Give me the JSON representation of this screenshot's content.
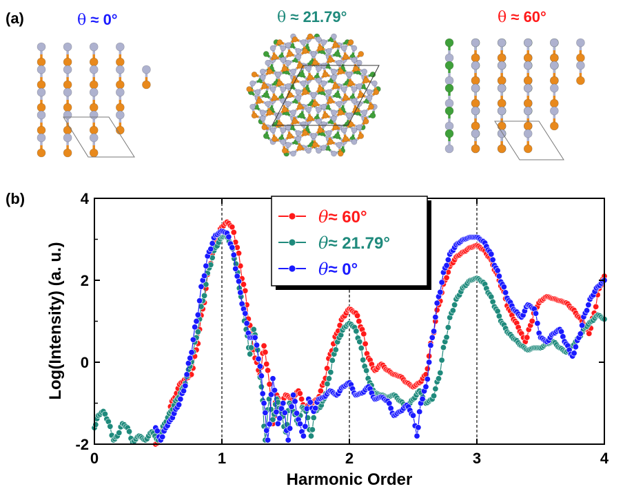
{
  "panel_a": {
    "label": "(a)",
    "structures": [
      {
        "theta": "θ",
        "approx": " ≈ ",
        "angle": "0°",
        "color": "#1a1aff"
      },
      {
        "theta": "θ",
        "approx": " ≈ ",
        "angle": "21.79°",
        "color": "#1f8a7c"
      },
      {
        "theta": "θ",
        "approx": " ≈ ",
        "angle": "60°",
        "color": "#ff1a1a"
      }
    ],
    "atom_colors": {
      "gray": "#aeb2cf",
      "orange": "#e8891c",
      "green": "#3fa03a"
    }
  },
  "panel_b": {
    "label": "(b)"
  },
  "chart_data": {
    "type": "line",
    "xlabel": "Harmonic Order",
    "ylabel": "Log(Intensity) (a. u.)",
    "xlim": [
      0,
      4
    ],
    "ylim": [
      -2,
      4
    ],
    "xticks": [
      "0",
      "1",
      "2",
      "3",
      "4"
    ],
    "yticks": [
      "-2",
      "0",
      "2",
      "4"
    ],
    "vlines": [
      1,
      2,
      3
    ],
    "legend_position": "top-center",
    "series": [
      {
        "name": "θ≈ 60°",
        "legend_theta": "θ",
        "legend_rest": "≈ 60°",
        "color": "#ff1a1a",
        "points": [
          [
            0.48,
            -2.0
          ],
          [
            0.55,
            -1.6
          ],
          [
            0.62,
            -0.9
          ],
          [
            0.68,
            -0.5
          ],
          [
            0.72,
            -0.4
          ],
          [
            0.76,
            -0.3
          ],
          [
            0.8,
            0.3
          ],
          [
            0.85,
            1.3
          ],
          [
            0.9,
            2.3
          ],
          [
            0.95,
            3.0
          ],
          [
            1.0,
            3.3
          ],
          [
            1.04,
            3.42
          ],
          [
            1.08,
            3.3
          ],
          [
            1.12,
            2.8
          ],
          [
            1.17,
            1.9
          ],
          [
            1.22,
            0.9
          ],
          [
            1.26,
            0.1
          ],
          [
            1.3,
            -0.3
          ],
          [
            1.33,
            0.4
          ],
          [
            1.36,
            -0.2
          ],
          [
            1.4,
            -1.5
          ],
          [
            1.43,
            -0.8
          ],
          [
            1.46,
            -1.1
          ],
          [
            1.5,
            -0.8
          ],
          [
            1.55,
            -0.9
          ],
          [
            1.6,
            -0.7
          ],
          [
            1.65,
            -1.1
          ],
          [
            1.7,
            -1.0
          ],
          [
            1.75,
            -0.9
          ],
          [
            1.8,
            -0.5
          ],
          [
            1.85,
            0.2
          ],
          [
            1.9,
            0.7
          ],
          [
            1.95,
            1.1
          ],
          [
            2.0,
            1.3
          ],
          [
            2.05,
            1.2
          ],
          [
            2.1,
            0.8
          ],
          [
            2.15,
            0.1
          ],
          [
            2.2,
            -0.2
          ],
          [
            2.25,
            -0.05
          ],
          [
            2.3,
            -0.2
          ],
          [
            2.35,
            -0.3
          ],
          [
            2.4,
            -0.35
          ],
          [
            2.45,
            -0.5
          ],
          [
            2.5,
            -0.6
          ],
          [
            2.55,
            -0.5
          ],
          [
            2.6,
            -0.3
          ],
          [
            2.65,
            0.6
          ],
          [
            2.7,
            1.4
          ],
          [
            2.75,
            2.0
          ],
          [
            2.8,
            2.4
          ],
          [
            2.85,
            2.6
          ],
          [
            2.9,
            2.7
          ],
          [
            2.95,
            2.8
          ],
          [
            3.0,
            2.85
          ],
          [
            3.05,
            2.75
          ],
          [
            3.1,
            2.55
          ],
          [
            3.15,
            2.2
          ],
          [
            3.2,
            1.8
          ],
          [
            3.25,
            1.3
          ],
          [
            3.3,
            1.0
          ],
          [
            3.35,
            0.7
          ],
          [
            3.38,
            0.5
          ],
          [
            3.42,
            0.9
          ],
          [
            3.46,
            1.3
          ],
          [
            3.5,
            1.5
          ],
          [
            3.55,
            1.6
          ],
          [
            3.6,
            1.55
          ],
          [
            3.65,
            1.5
          ],
          [
            3.7,
            1.45
          ],
          [
            3.75,
            1.3
          ],
          [
            3.8,
            1.1
          ],
          [
            3.85,
            0.9
          ],
          [
            3.88,
            0.7
          ],
          [
            3.92,
            1.2
          ],
          [
            3.96,
            1.8
          ],
          [
            4.0,
            2.1
          ]
        ]
      },
      {
        "name": "θ≈ 21.79°",
        "legend_theta": "θ",
        "legend_rest": "≈ 21.79°",
        "color": "#1f8a7c",
        "points": [
          [
            0.0,
            -1.6
          ],
          [
            0.03,
            -1.3
          ],
          [
            0.07,
            -1.2
          ],
          [
            0.11,
            -1.45
          ],
          [
            0.15,
            -1.9
          ],
          [
            0.18,
            -1.8
          ],
          [
            0.22,
            -1.5
          ],
          [
            0.26,
            -1.6
          ],
          [
            0.3,
            -1.95
          ],
          [
            0.35,
            -1.8
          ],
          [
            0.4,
            -1.9
          ],
          [
            0.45,
            -1.7
          ],
          [
            0.5,
            -1.9
          ],
          [
            0.55,
            -1.5
          ],
          [
            0.6,
            -1.2
          ],
          [
            0.65,
            -0.9
          ],
          [
            0.7,
            -0.6
          ],
          [
            0.75,
            -0.1
          ],
          [
            0.8,
            0.6
          ],
          [
            0.85,
            1.5
          ],
          [
            0.9,
            2.3
          ],
          [
            0.95,
            2.8
          ],
          [
            1.0,
            3.05
          ],
          [
            1.03,
            3.1
          ],
          [
            1.07,
            2.9
          ],
          [
            1.11,
            2.4
          ],
          [
            1.15,
            1.6
          ],
          [
            1.19,
            0.8
          ],
          [
            1.22,
            0.2
          ],
          [
            1.25,
            0.8
          ],
          [
            1.28,
            0.3
          ],
          [
            1.31,
            -0.6
          ],
          [
            1.34,
            -1.9
          ],
          [
            1.37,
            -0.9
          ],
          [
            1.4,
            -1.4
          ],
          [
            1.43,
            -0.9
          ],
          [
            1.46,
            -1.2
          ],
          [
            1.5,
            -1.7
          ],
          [
            1.53,
            -1.0
          ],
          [
            1.56,
            -1.2
          ],
          [
            1.6,
            -1.5
          ],
          [
            1.63,
            -1.1
          ],
          [
            1.66,
            -1.2
          ],
          [
            1.7,
            -1.8
          ],
          [
            1.73,
            -1.2
          ],
          [
            1.77,
            -1.1
          ],
          [
            1.8,
            -0.9
          ],
          [
            1.84,
            -0.4
          ],
          [
            1.88,
            0.2
          ],
          [
            1.92,
            0.6
          ],
          [
            1.96,
            0.85
          ],
          [
            2.0,
            0.95
          ],
          [
            2.04,
            0.85
          ],
          [
            2.08,
            0.5
          ],
          [
            2.12,
            -0.1
          ],
          [
            2.16,
            -0.5
          ],
          [
            2.2,
            -0.75
          ],
          [
            2.25,
            -0.8
          ],
          [
            2.3,
            -0.85
          ],
          [
            2.35,
            -0.8
          ],
          [
            2.4,
            -0.95
          ],
          [
            2.45,
            -1.1
          ],
          [
            2.5,
            -0.9
          ],
          [
            2.55,
            -0.7
          ],
          [
            2.6,
            -1.0
          ],
          [
            2.65,
            -0.9
          ],
          [
            2.7,
            -0.4
          ],
          [
            2.75,
            0.5
          ],
          [
            2.8,
            1.2
          ],
          [
            2.85,
            1.6
          ],
          [
            2.9,
            1.85
          ],
          [
            2.95,
            2.0
          ],
          [
            3.0,
            2.05
          ],
          [
            3.05,
            1.95
          ],
          [
            3.1,
            1.65
          ],
          [
            3.15,
            1.3
          ],
          [
            3.2,
            0.95
          ],
          [
            3.25,
            0.7
          ],
          [
            3.3,
            0.55
          ],
          [
            3.35,
            0.4
          ],
          [
            3.4,
            0.3
          ],
          [
            3.45,
            0.35
          ],
          [
            3.5,
            0.35
          ],
          [
            3.55,
            0.45
          ],
          [
            3.6,
            0.5
          ],
          [
            3.65,
            0.35
          ],
          [
            3.7,
            0.25
          ],
          [
            3.75,
            0.4
          ],
          [
            3.8,
            0.6
          ],
          [
            3.85,
            0.85
          ],
          [
            3.9,
            1.0
          ],
          [
            3.95,
            1.15
          ],
          [
            4.0,
            1.05
          ]
        ]
      },
      {
        "name": "θ≈ 0°",
        "legend_theta": "θ",
        "legend_rest": "≈ 0°",
        "color": "#1a1aff",
        "points": [
          [
            0.48,
            -1.6
          ],
          [
            0.52,
            -1.9
          ],
          [
            0.56,
            -1.6
          ],
          [
            0.6,
            -1.4
          ],
          [
            0.65,
            -1.1
          ],
          [
            0.7,
            -0.7
          ],
          [
            0.75,
            0.1
          ],
          [
            0.8,
            1.0
          ],
          [
            0.85,
            2.0
          ],
          [
            0.9,
            2.7
          ],
          [
            0.95,
            3.1
          ],
          [
            1.0,
            3.2
          ],
          [
            1.04,
            3.15
          ],
          [
            1.08,
            2.8
          ],
          [
            1.12,
            2.1
          ],
          [
            1.17,
            1.3
          ],
          [
            1.22,
            0.6
          ],
          [
            1.26,
            0.6
          ],
          [
            1.3,
            -0.1
          ],
          [
            1.33,
            -1.0
          ],
          [
            1.36,
            -1.9
          ],
          [
            1.4,
            -0.4
          ],
          [
            1.44,
            -1.5
          ],
          [
            1.48,
            -1.0
          ],
          [
            1.52,
            -1.9
          ],
          [
            1.56,
            -0.8
          ],
          [
            1.6,
            -1.4
          ],
          [
            1.64,
            -1.8
          ],
          [
            1.68,
            -0.9
          ],
          [
            1.72,
            -1.2
          ],
          [
            1.76,
            -0.9
          ],
          [
            1.8,
            -0.85
          ],
          [
            1.85,
            -0.7
          ],
          [
            1.9,
            -0.8
          ],
          [
            1.95,
            -0.6
          ],
          [
            2.0,
            -0.5
          ],
          [
            2.05,
            -0.8
          ],
          [
            2.1,
            -0.75
          ],
          [
            2.15,
            -0.6
          ],
          [
            2.2,
            -0.9
          ],
          [
            2.25,
            -0.85
          ],
          [
            2.3,
            -0.95
          ],
          [
            2.35,
            -1.3
          ],
          [
            2.4,
            -1.2
          ],
          [
            2.45,
            -1.05
          ],
          [
            2.5,
            -1.3
          ],
          [
            2.53,
            -1.8
          ],
          [
            2.56,
            -1.0
          ],
          [
            2.6,
            -0.6
          ],
          [
            2.65,
            0.6
          ],
          [
            2.7,
            1.6
          ],
          [
            2.75,
            2.3
          ],
          [
            2.8,
            2.7
          ],
          [
            2.85,
            2.9
          ],
          [
            2.9,
            3.0
          ],
          [
            2.95,
            3.05
          ],
          [
            3.0,
            3.05
          ],
          [
            3.05,
            2.95
          ],
          [
            3.1,
            2.7
          ],
          [
            3.15,
            2.3
          ],
          [
            3.2,
            1.9
          ],
          [
            3.25,
            1.5
          ],
          [
            3.3,
            1.25
          ],
          [
            3.35,
            1.1
          ],
          [
            3.4,
            1.4
          ],
          [
            3.45,
            1.3
          ],
          [
            3.5,
            0.6
          ],
          [
            3.55,
            0.5
          ],
          [
            3.6,
            0.7
          ],
          [
            3.65,
            0.8
          ],
          [
            3.7,
            0.45
          ],
          [
            3.75,
            0.15
          ],
          [
            3.8,
            0.6
          ],
          [
            3.85,
            1.2
          ],
          [
            3.9,
            1.6
          ],
          [
            3.95,
            1.85
          ],
          [
            4.0,
            2.0
          ]
        ]
      }
    ]
  }
}
